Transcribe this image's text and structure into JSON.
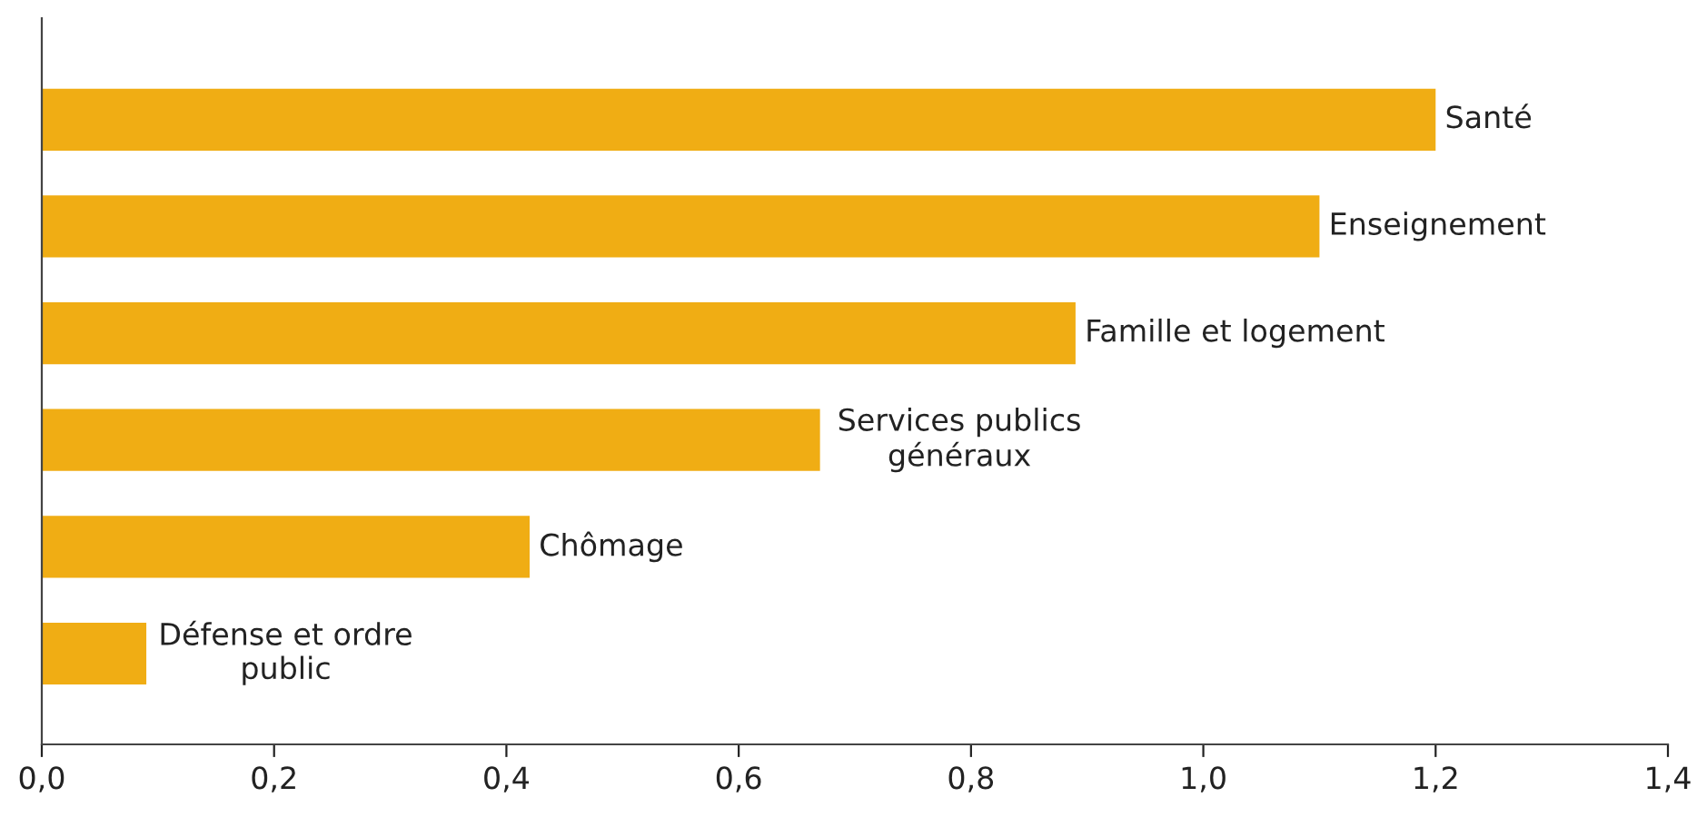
{
  "chart_data": {
    "type": "bar",
    "orientation": "horizontal",
    "categories": [
      "Santé",
      "Enseignement",
      "Famille et logement",
      "Services publics\ngénéraux",
      "Chômage",
      "Défense et ordre\npublic"
    ],
    "values": [
      1.2,
      1.1,
      0.89,
      0.67,
      0.42,
      0.09
    ],
    "color": "#f0ad14",
    "xlim": [
      0,
      1.4
    ],
    "xticks": [
      {
        "value": 0,
        "label": "0,0"
      },
      {
        "value": 0.2,
        "label": "0,2"
      },
      {
        "value": 0.4,
        "label": "0,4"
      },
      {
        "value": 0.6,
        "label": "0,6"
      },
      {
        "value": 0.8,
        "label": "0,8"
      },
      {
        "value": 1.0,
        "label": "1,0"
      },
      {
        "value": 1.2,
        "label": "1,2"
      },
      {
        "value": 1.4,
        "label": "1,4"
      }
    ],
    "tick_labels": "x",
    "grid": false,
    "legend": false
  }
}
